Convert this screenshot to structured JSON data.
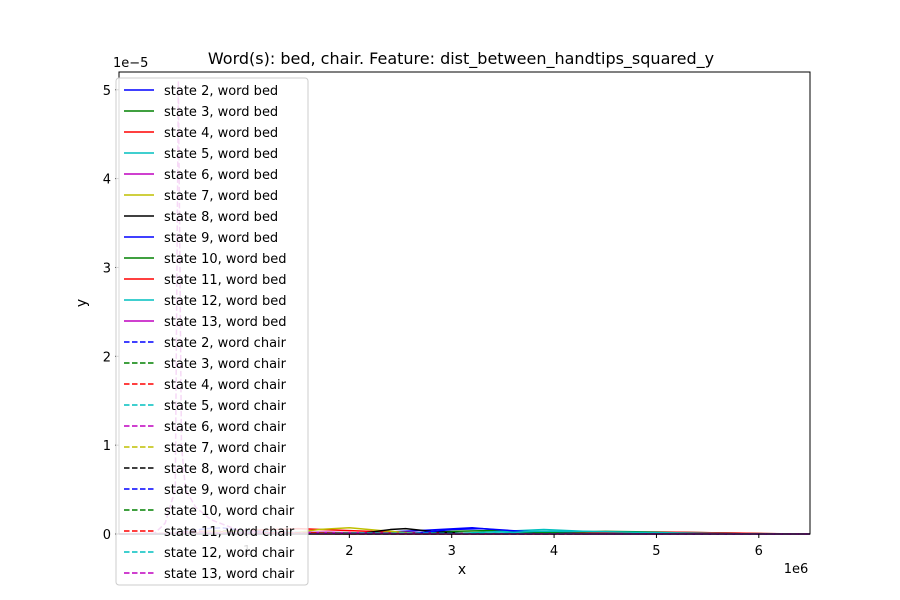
{
  "chart_data": {
    "type": "line",
    "title": "Word(s): bed, chair. Feature: dist_between_handtips_squared_y",
    "xlabel": "x",
    "ylabel": "y",
    "x_offset_label": "1e6",
    "y_offset_label": "1e−5",
    "xlim": [
      -250000,
      6500000
    ],
    "ylim": [
      0,
      5.2e-05
    ],
    "xticks": [
      {
        "value": 1000000,
        "label": "1"
      },
      {
        "value": 2000000,
        "label": "2"
      },
      {
        "value": 3000000,
        "label": "3"
      },
      {
        "value": 4000000,
        "label": "4"
      },
      {
        "value": 5000000,
        "label": "5"
      },
      {
        "value": 6000000,
        "label": "6"
      }
    ],
    "yticks": [
      {
        "value": 0,
        "label": "0"
      },
      {
        "value": 1e-05,
        "label": "1"
      },
      {
        "value": 2e-05,
        "label": "2"
      },
      {
        "value": 3e-05,
        "label": "3"
      },
      {
        "value": 4e-05,
        "label": "4"
      },
      {
        "value": 5e-05,
        "label": "5"
      }
    ],
    "grid": false,
    "legend_position": "upper-left",
    "series": [
      {
        "name": "state 2, word bed",
        "color": "#0000ff",
        "dash": "solid",
        "x": [
          -250000,
          2000000,
          2700000,
          3200000,
          3600000,
          4200000,
          6500000
        ],
        "y": [
          0,
          2e-08,
          4e-07,
          7e-07,
          3e-07,
          2e-08,
          0
        ]
      },
      {
        "name": "state 3, word bed",
        "color": "#008000",
        "dash": "solid",
        "x": [
          -250000,
          2500000,
          3000000,
          3400000,
          3900000,
          4500000,
          6500000
        ],
        "y": [
          0,
          5e-08,
          3e-07,
          4e-07,
          2e-07,
          3e-08,
          0
        ]
      },
      {
        "name": "state 4, word bed",
        "color": "#ff0000",
        "dash": "solid",
        "x": [
          -250000,
          500000,
          1000000,
          1500000,
          2200000,
          3000000,
          6500000
        ],
        "y": [
          0,
          1e-07,
          4e-07,
          6e-07,
          3e-07,
          3e-08,
          0
        ]
      },
      {
        "name": "state 5, word bed",
        "color": "#00bfbf",
        "dash": "solid",
        "x": [
          -250000,
          3000000,
          3500000,
          3900000,
          4500000,
          5200000,
          6500000
        ],
        "y": [
          0,
          3e-08,
          3e-07,
          5e-07,
          2e-07,
          2e-08,
          0
        ]
      },
      {
        "name": "state 6, word bed",
        "color": "#bf00bf",
        "dash": "solid",
        "x": [
          -250000,
          800000,
          1200000,
          1800000,
          2400000,
          6500000
        ],
        "y": [
          0,
          2e-08,
          1.5e-07,
          2e-07,
          2e-08,
          0
        ]
      },
      {
        "name": "state 7, word bed",
        "color": "#bfbf00",
        "dash": "solid",
        "x": [
          -250000,
          1400000,
          1700000,
          2000000,
          2300000,
          2700000,
          6500000
        ],
        "y": [
          0,
          5e-08,
          5e-07,
          7e-07,
          4e-07,
          2e-08,
          0
        ]
      },
      {
        "name": "state 8, word bed",
        "color": "#000000",
        "dash": "solid",
        "x": [
          -250000,
          2100000,
          2400000,
          2550000,
          2800000,
          3200000,
          6500000
        ],
        "y": [
          0,
          5e-08,
          5e-07,
          6e-07,
          3e-07,
          2e-08,
          0
        ]
      },
      {
        "name": "state 9, word bed",
        "color": "#0000ff",
        "dash": "solid",
        "x": [
          -250000,
          2600000,
          3000000,
          3300000,
          3700000,
          4300000,
          6500000
        ],
        "y": [
          0,
          5e-08,
          5e-07,
          6e-07,
          3e-07,
          2e-08,
          0
        ]
      },
      {
        "name": "state 10, word bed",
        "color": "#008000",
        "dash": "solid",
        "x": [
          -250000,
          3500000,
          4000000,
          4500000,
          5200000,
          6000000,
          6500000
        ],
        "y": [
          0,
          1e-08,
          2e-07,
          3e-07,
          2e-07,
          5e-08,
          0
        ]
      },
      {
        "name": "state 11, word bed",
        "color": "#ff0000",
        "dash": "solid",
        "x": [
          -250000,
          4000000,
          4700000,
          5200000,
          5800000,
          6300000,
          6500000
        ],
        "y": [
          0,
          1e-08,
          1.5e-07,
          2e-07,
          1e-07,
          2e-08,
          0
        ]
      },
      {
        "name": "state 12, word bed",
        "color": "#00bfbf",
        "dash": "solid",
        "x": [
          -250000,
          3300000,
          3800000,
          4300000,
          5000000,
          5800000,
          6500000
        ],
        "y": [
          0,
          1e-08,
          3e-07,
          3e-07,
          1.5e-07,
          3e-08,
          0
        ]
      },
      {
        "name": "state 13, word bed",
        "color": "#bf00bf",
        "dash": "solid",
        "x": [
          -250000,
          1000000,
          1500000,
          2000000,
          2500000,
          6500000
        ],
        "y": [
          0,
          2e-08,
          1e-07,
          1.5e-07,
          2e-08,
          0
        ]
      },
      {
        "name": "state 2, word chair",
        "color": "#0000ff",
        "dash": "dashed",
        "x": [
          -250000,
          200000,
          400000,
          600000,
          750000,
          900000,
          1200000,
          1600000,
          6500000
        ],
        "y": [
          0,
          5e-08,
          3e-07,
          6e-07,
          7e-07,
          5e-07,
          2e-07,
          3e-08,
          0
        ]
      },
      {
        "name": "state 3, word chair",
        "color": "#008000",
        "dash": "dashed",
        "x": [
          -250000,
          300000,
          600000,
          900000,
          1300000,
          1800000,
          6500000
        ],
        "y": [
          0,
          5e-08,
          3e-07,
          4e-07,
          2e-07,
          3e-08,
          0
        ]
      },
      {
        "name": "state 4, word chair",
        "color": "#ff0000",
        "dash": "dashed",
        "x": [
          -250000,
          200000,
          500000,
          800000,
          1200000,
          1700000,
          6500000
        ],
        "y": [
          0,
          5e-08,
          3e-07,
          3e-07,
          1e-07,
          2e-08,
          0
        ]
      },
      {
        "name": "state 5, word chair",
        "color": "#00bfbf",
        "dash": "dashed",
        "x": [
          -250000,
          400000,
          900000,
          1300000,
          1700000,
          2200000,
          6500000
        ],
        "y": [
          0,
          5e-08,
          3e-07,
          3e-07,
          1e-07,
          2e-08,
          0
        ]
      },
      {
        "name": "state 6, word chair",
        "color": "#bf00bf",
        "dash": "dashed",
        "x": [
          -250000,
          100000,
          200000,
          300000,
          330000,
          360000,
          400000,
          500000,
          650000,
          900000,
          1300000,
          6500000
        ],
        "y": [
          0,
          1e-07,
          1.2e-06,
          5e-06,
          5.1e-05,
          1e-05,
          5e-06,
          3e-06,
          1.6e-06,
          5e-07,
          5e-08,
          0
        ]
      },
      {
        "name": "state 7, word chair",
        "color": "#bfbf00",
        "dash": "dashed",
        "x": [
          -250000,
          300000,
          700000,
          1100000,
          1500000,
          6500000
        ],
        "y": [
          0,
          5e-08,
          3e-07,
          2e-07,
          2e-08,
          0
        ]
      },
      {
        "name": "state 8, word chair",
        "color": "#000000",
        "dash": "dashed",
        "x": [
          -250000,
          500000,
          1000000,
          1400000,
          1900000,
          6500000
        ],
        "y": [
          0,
          3e-08,
          2e-07,
          1e-07,
          1e-08,
          0
        ]
      },
      {
        "name": "state 9, word chair",
        "color": "#0000ff",
        "dash": "dashed",
        "x": [
          -250000,
          600000,
          1100000,
          1600000,
          2200000,
          6500000
        ],
        "y": [
          0,
          3e-08,
          2e-07,
          1e-07,
          1e-08,
          0
        ]
      },
      {
        "name": "state 10, word chair",
        "color": "#008000",
        "dash": "dashed",
        "x": [
          -250000,
          1000000,
          1600000,
          2200000,
          2800000,
          6500000
        ],
        "y": [
          0,
          2e-08,
          1.5e-07,
          1e-07,
          1e-08,
          0
        ]
      },
      {
        "name": "state 11, word chair",
        "color": "#ff0000",
        "dash": "dashed",
        "x": [
          -250000,
          700000,
          1300000,
          1900000,
          2500000,
          6500000
        ],
        "y": [
          0,
          2e-08,
          1.5e-07,
          1e-07,
          1e-08,
          0
        ]
      },
      {
        "name": "state 12, word chair",
        "color": "#00bfbf",
        "dash": "dashed",
        "x": [
          -250000,
          1500000,
          2200000,
          2800000,
          3400000,
          6500000
        ],
        "y": [
          0,
          1e-08,
          1e-07,
          1e-07,
          1e-08,
          0
        ]
      },
      {
        "name": "state 13, word chair",
        "color": "#bf00bf",
        "dash": "dashed",
        "x": [
          -250000,
          200000,
          500000,
          900000,
          1300000,
          6500000
        ],
        "y": [
          0,
          5e-08,
          2e-07,
          1e-07,
          1e-08,
          0
        ]
      }
    ]
  }
}
